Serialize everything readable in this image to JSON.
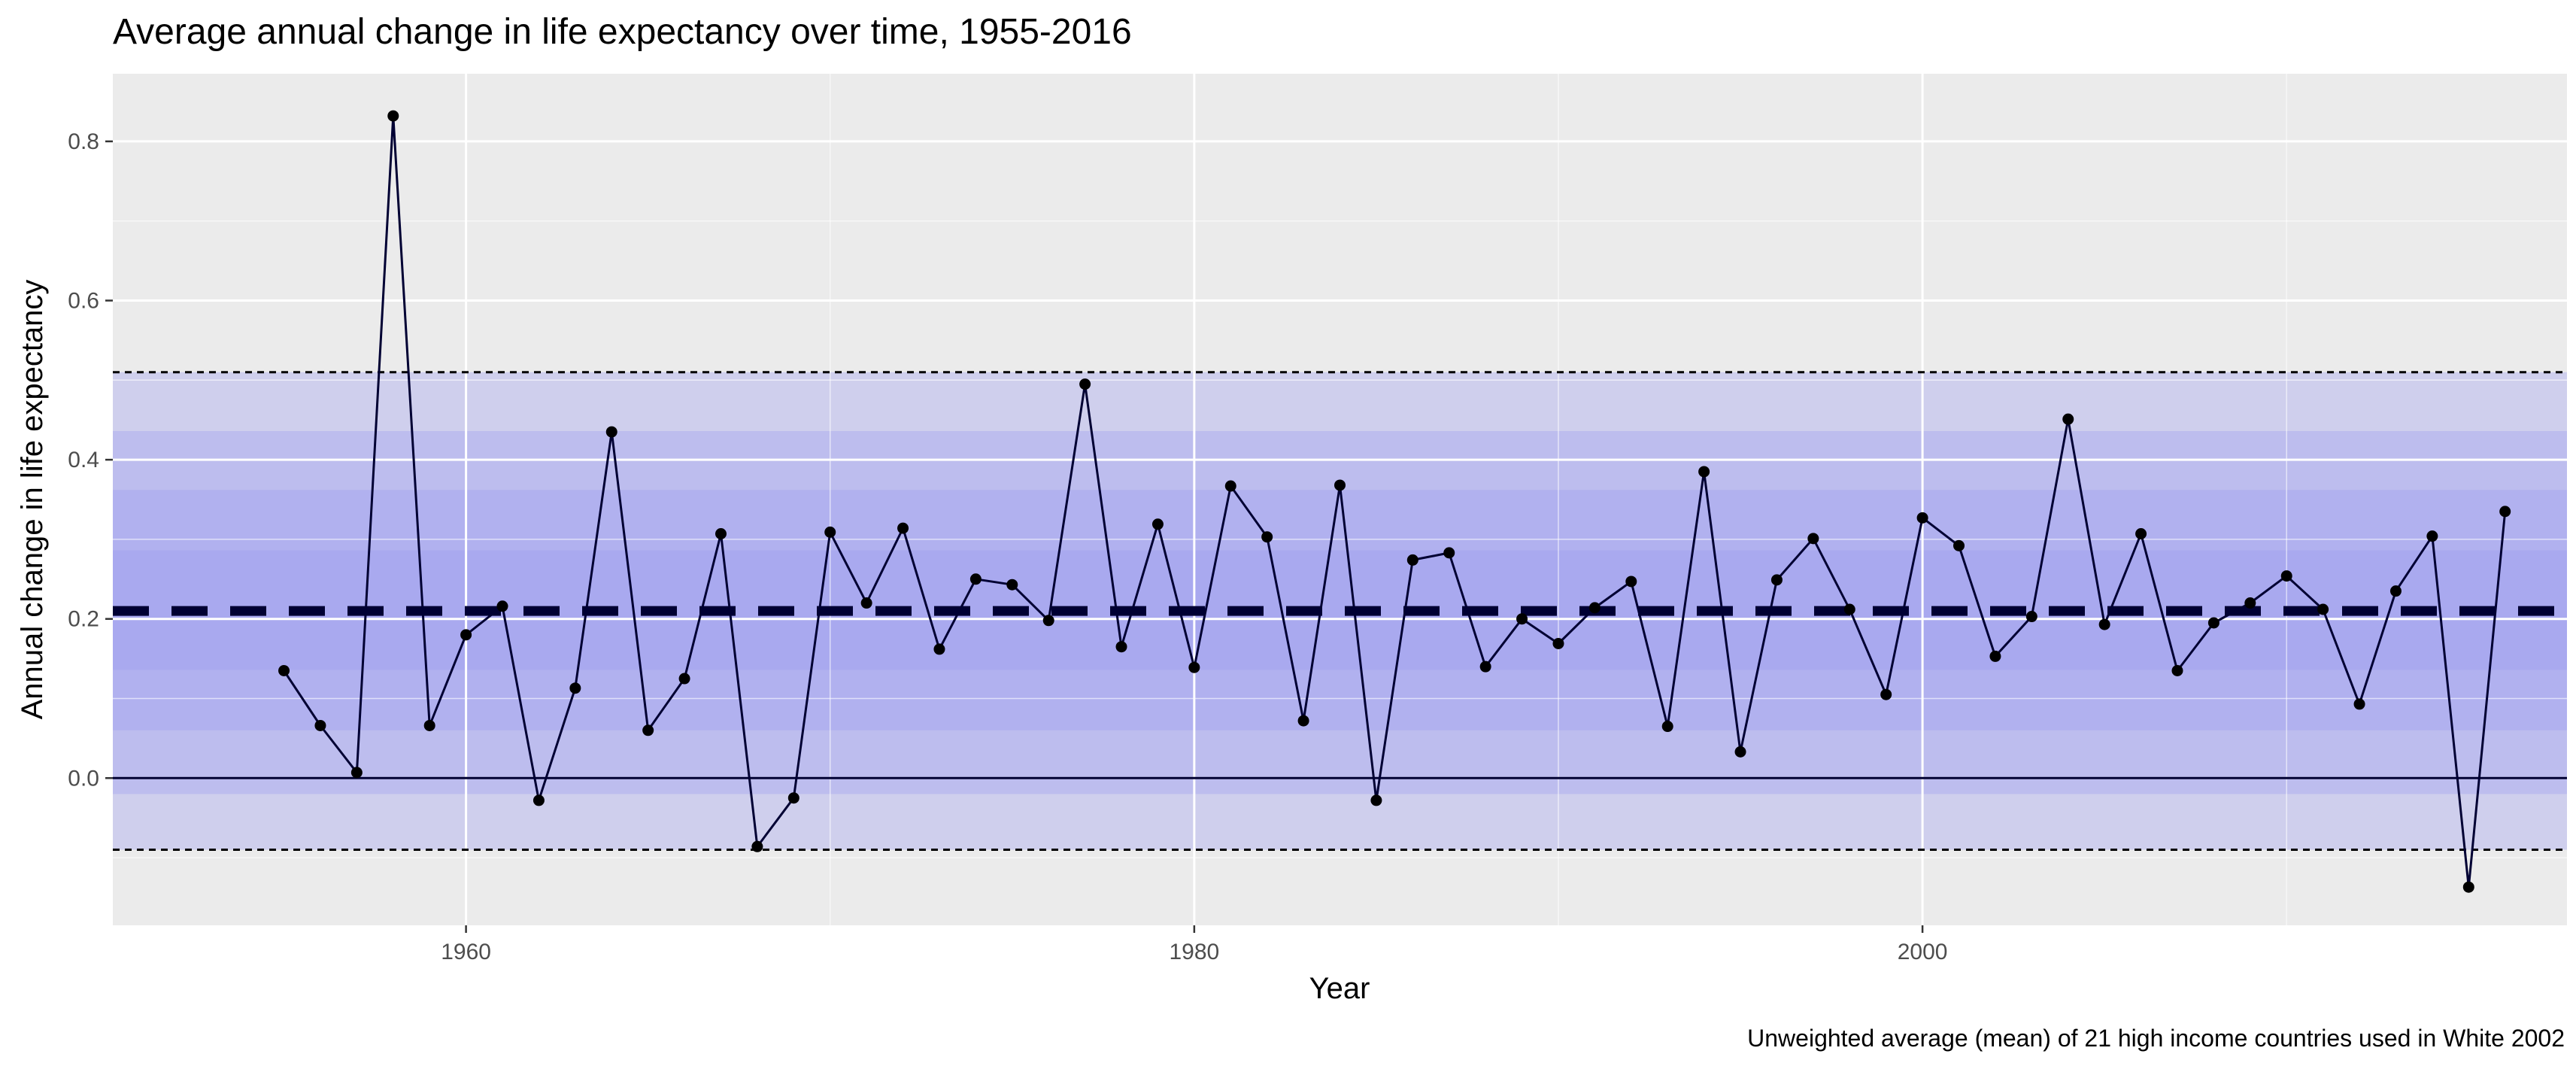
{
  "chart_data": {
    "type": "line",
    "title": "Average annual change in life expectancy over time, 1955-2016",
    "xlabel": "Year",
    "ylabel": "Annual change in life expectancy",
    "caption": "Unweighted average (mean) of 21 high income countries used in White 2002",
    "xlim": [
      1950.3,
      2017.7
    ],
    "ylim": [
      -0.185,
      0.885
    ],
    "x_ticks": [
      1960,
      1980,
      2000
    ],
    "x_tick_labels": [
      "1960",
      "1980",
      "2000"
    ],
    "y_ticks": [
      0.0,
      0.2,
      0.4,
      0.6,
      0.8
    ],
    "y_tick_labels": [
      "0.0",
      "0.2",
      "0.4",
      "0.6",
      "0.8"
    ],
    "grid": true,
    "panel_background": "#ebebeb",
    "line_color": "#000033",
    "mean": 0.21,
    "bounds": [
      -0.09,
      0.51
    ],
    "zero_line": 0,
    "bands": [
      {
        "from": -0.09,
        "to": 0.51,
        "color": "#9b9bf0",
        "opacity": 0.35
      },
      {
        "from": -0.02,
        "to": 0.436,
        "color": "#9b9bf0",
        "opacity": 0.35
      },
      {
        "from": 0.06,
        "to": 0.362,
        "color": "#9b9bf0",
        "opacity": 0.35
      },
      {
        "from": 0.136,
        "to": 0.286,
        "color": "#9b9bf0",
        "opacity": 0.35
      }
    ],
    "series": [
      {
        "x": [
          1955,
          1956,
          1957,
          1958,
          1959,
          1960,
          1961,
          1962,
          1963,
          1964,
          1965,
          1966,
          1967,
          1968,
          1969,
          1970,
          1971,
          1972,
          1973,
          1974,
          1975,
          1976,
          1977,
          1978,
          1979,
          1980,
          1981,
          1982,
          1983,
          1984,
          1985,
          1986,
          1987,
          1988,
          1989,
          1990,
          1991,
          1992,
          1993,
          1994,
          1995,
          1996,
          1997,
          1998,
          1999,
          2000,
          2001,
          2002,
          2003,
          2004,
          2005,
          2006,
          2007,
          2008,
          2009,
          2010,
          2011,
          2012,
          2013,
          2014,
          2015,
          2016
        ],
        "y": [
          0.135,
          0.066,
          0.007,
          0.832,
          0.066,
          0.18,
          0.216,
          -0.028,
          0.113,
          0.435,
          0.06,
          0.125,
          0.307,
          -0.086,
          -0.025,
          0.309,
          0.22,
          0.314,
          0.162,
          0.25,
          0.243,
          0.198,
          0.495,
          0.165,
          0.319,
          0.139,
          0.367,
          0.303,
          0.072,
          0.368,
          -0.028,
          0.274,
          0.283,
          0.14,
          0.2,
          0.169,
          0.214,
          0.247,
          0.065,
          0.385,
          0.033,
          0.249,
          0.301,
          0.212,
          0.105,
          0.327,
          0.292,
          0.153,
          0.203,
          0.451,
          0.193,
          0.307,
          0.135,
          0.195,
          0.22,
          0.254,
          0.212,
          0.093,
          0.235,
          0.304,
          -0.137,
          0.335
        ]
      }
    ]
  }
}
